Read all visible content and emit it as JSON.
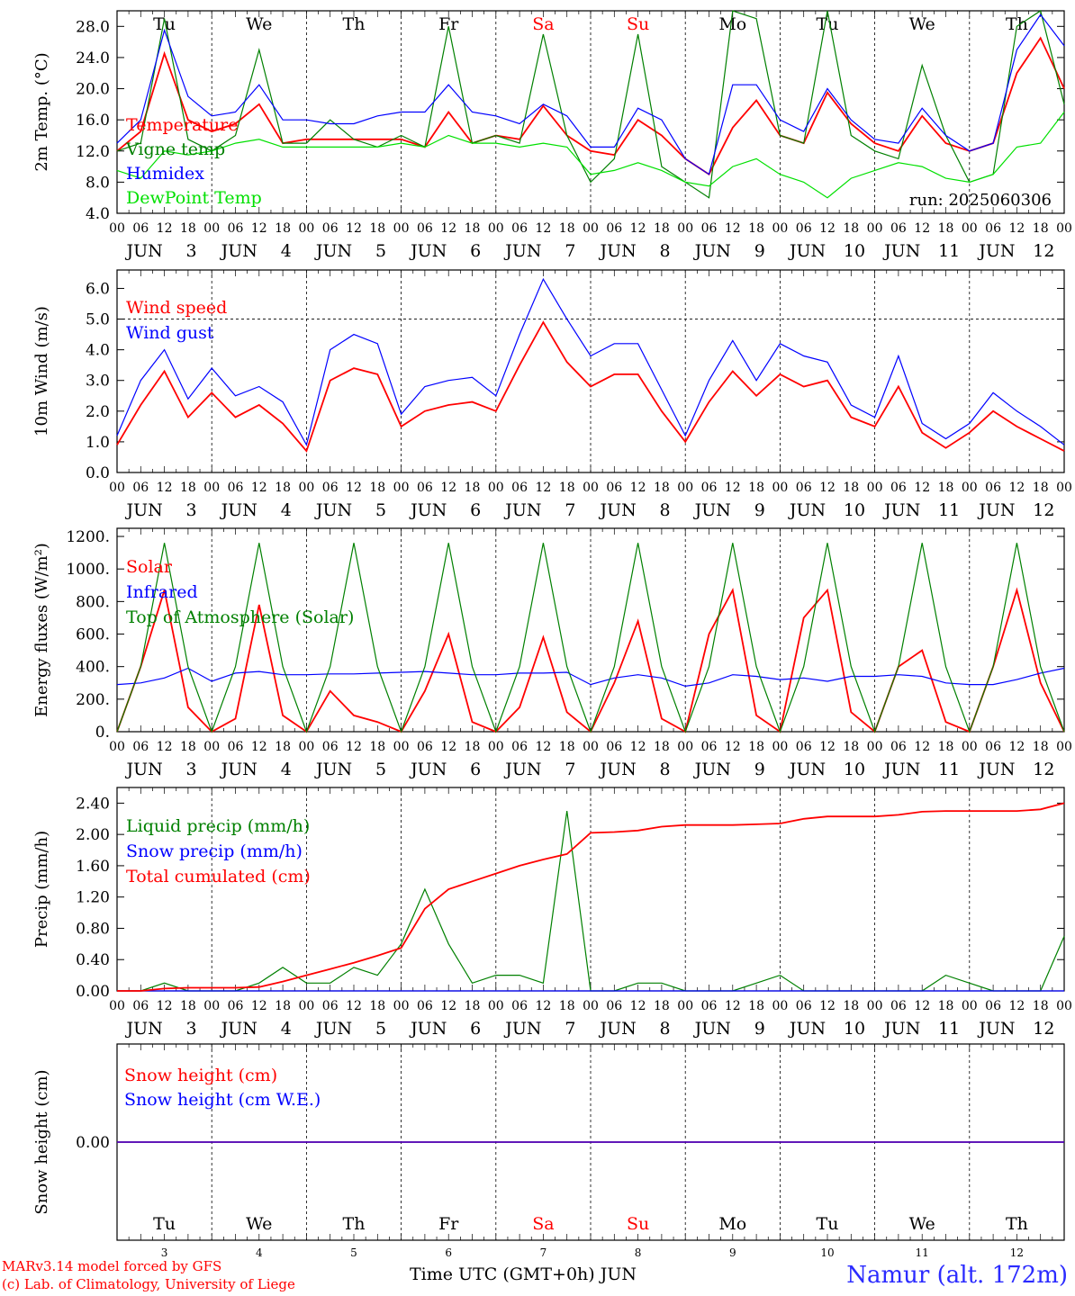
{
  "run_label": "run: 2025060306",
  "month": "JUN",
  "days": [
    3,
    4,
    5,
    6,
    7,
    8,
    9,
    10,
    11,
    12
  ],
  "weekdays": [
    {
      "label": "Tu",
      "color": "#000000"
    },
    {
      "label": "We",
      "color": "#000000"
    },
    {
      "label": "Th",
      "color": "#000000"
    },
    {
      "label": "Fr",
      "color": "#000000"
    },
    {
      "label": "Sa",
      "color": "#ff0000"
    },
    {
      "label": "Su",
      "color": "#ff0000"
    },
    {
      "label": "Mo",
      "color": "#000000"
    },
    {
      "label": "Tu",
      "color": "#000000"
    },
    {
      "label": "We",
      "color": "#000000"
    },
    {
      "label": "Th",
      "color": "#000000"
    }
  ],
  "hour_ticks": [
    "00",
    "06",
    "12",
    "18"
  ],
  "footer": {
    "model": "MARv3.14 model forced by GFS",
    "credit": "(c) Lab. of Climatology, University of Liege",
    "time_label": "Time UTC (GMT+0h) JUN",
    "station": "Namur (alt. 172m)"
  },
  "colors": {
    "red": "#ff0000",
    "blue": "#0000ff",
    "green": "#008000",
    "lightgreen": "#00e000"
  },
  "chart_data": [
    {
      "type": "line",
      "ylabel": "2m Temp. (°C)",
      "ylim": [
        4,
        30
      ],
      "yticks": [
        "4.0",
        "8.0",
        "12.0",
        "16.0",
        "20.0",
        "24.0",
        "28.0"
      ],
      "ytick_values": [
        4,
        8,
        12,
        16,
        20,
        24,
        28
      ],
      "x_hours": [
        0,
        6,
        12,
        18,
        24,
        30,
        36,
        42,
        48,
        54,
        60,
        66,
        72,
        78,
        84,
        90,
        96,
        102,
        108,
        114,
        120,
        126,
        132,
        138,
        144,
        150,
        156,
        162,
        168,
        174,
        180,
        186,
        192,
        198,
        204,
        210,
        216,
        222,
        228,
        234,
        240
      ],
      "series": [
        {
          "name": "Temperature",
          "color": "#ff0000",
          "values": [
            12,
            14.5,
            24.5,
            16,
            14.5,
            15.5,
            18,
            13,
            13.5,
            13.5,
            13.5,
            13.5,
            13.5,
            12.5,
            17,
            13,
            14,
            13.5,
            17.8,
            14,
            12,
            11.5,
            16,
            14,
            11,
            9,
            15,
            18.5,
            14,
            13,
            19.5,
            15.5,
            13,
            12,
            16.5,
            13,
            12,
            13,
            22,
            26.5,
            20
          ]
        },
        {
          "name": "Vigne temp",
          "color": "#008000",
          "values": [
            12,
            13,
            29,
            13.5,
            12,
            14,
            25,
            13,
            13,
            16,
            13.5,
            12.5,
            14,
            12.5,
            28,
            13,
            14,
            13,
            27,
            14,
            8,
            11,
            27,
            10,
            8,
            6,
            30,
            29,
            14,
            13,
            30,
            14,
            12,
            11,
            23,
            14,
            8,
            9,
            28,
            30,
            18
          ]
        },
        {
          "name": "Humidex",
          "color": "#0000ff",
          "values": [
            13,
            16,
            27.5,
            19,
            16.5,
            17,
            20.5,
            16,
            16,
            15.5,
            15.5,
            16.5,
            17,
            17,
            20.5,
            17,
            16.5,
            15.5,
            18,
            16.5,
            12.5,
            12.5,
            17.5,
            16,
            11,
            9,
            20.5,
            20.5,
            16,
            14.5,
            20,
            16,
            13.5,
            13,
            17.5,
            14,
            12,
            13,
            25,
            29.5,
            25.5
          ]
        },
        {
          "name": "DewPoint Temp",
          "color": "#00e000",
          "values": [
            9.5,
            8.5,
            12,
            11.5,
            12,
            13,
            13.5,
            12.5,
            12.5,
            12.5,
            12.5,
            12.5,
            13,
            12.5,
            14,
            13,
            13,
            12.5,
            13,
            12.5,
            9,
            9.5,
            10.5,
            9.5,
            8,
            7.5,
            10,
            11,
            9,
            8,
            6,
            8.5,
            9.5,
            10.5,
            10,
            8.5,
            8,
            9,
            12.5,
            13,
            17
          ]
        }
      ]
    },
    {
      "type": "line",
      "ylabel": "10m Wind (m/s)",
      "ylim": [
        0,
        6.6
      ],
      "yticks": [
        "0.0",
        "1.0",
        "2.0",
        "3.0",
        "4.0",
        "5.0",
        "6.0"
      ],
      "ytick_values": [
        0,
        1,
        2,
        3,
        4,
        5,
        6
      ],
      "x_hours": [
        0,
        6,
        12,
        18,
        24,
        30,
        36,
        42,
        48,
        54,
        60,
        66,
        72,
        78,
        84,
        90,
        96,
        102,
        108,
        114,
        120,
        126,
        132,
        138,
        144,
        150,
        156,
        162,
        168,
        174,
        180,
        186,
        192,
        198,
        204,
        210,
        216,
        222,
        228,
        234,
        240
      ],
      "series": [
        {
          "name": "Wind speed",
          "color": "#ff0000",
          "values": [
            0.9,
            2.2,
            3.3,
            1.8,
            2.6,
            1.8,
            2.2,
            1.6,
            0.7,
            3,
            3.4,
            3.2,
            1.5,
            2,
            2.2,
            2.3,
            2,
            3.5,
            4.9,
            3.6,
            2.8,
            3.2,
            3.2,
            2,
            1,
            2.3,
            3.3,
            2.5,
            3.2,
            2.8,
            3,
            1.8,
            1.5,
            2.8,
            1.3,
            0.8,
            1.3,
            2,
            1.5,
            1.1,
            0.7
          ]
        },
        {
          "name": "Wind gust",
          "color": "#0000ff",
          "values": [
            1.2,
            3,
            4,
            2.4,
            3.4,
            2.5,
            2.8,
            2.3,
            0.9,
            4,
            4.5,
            4.2,
            1.9,
            2.8,
            3,
            3.1,
            2.5,
            4.5,
            6.3,
            5,
            3.8,
            4.2,
            4.2,
            2.7,
            1.2,
            3,
            4.3,
            3,
            4.2,
            3.8,
            3.6,
            2.2,
            1.8,
            3.8,
            1.6,
            1.1,
            1.6,
            2.6,
            2,
            1.5,
            0.9
          ]
        }
      ]
    },
    {
      "type": "line",
      "ylabel": "Energy fluxes (W/m²)",
      "ylim": [
        0,
        1250
      ],
      "yticks": [
        "0.",
        "200.",
        "400.",
        "600.",
        "800.",
        "1000.",
        "1200."
      ],
      "ytick_values": [
        0,
        200,
        400,
        600,
        800,
        1000,
        1200
      ],
      "x_hours": [
        0,
        6,
        12,
        18,
        24,
        30,
        36,
        42,
        48,
        54,
        60,
        66,
        72,
        78,
        84,
        90,
        96,
        102,
        108,
        114,
        120,
        126,
        132,
        138,
        144,
        150,
        156,
        162,
        168,
        174,
        180,
        186,
        192,
        198,
        204,
        210,
        216,
        222,
        228,
        234,
        240
      ],
      "series": [
        {
          "name": "Solar",
          "color": "#ff0000",
          "values": [
            0,
            400,
            870,
            150,
            0,
            80,
            780,
            100,
            0,
            250,
            100,
            60,
            0,
            250,
            600,
            60,
            0,
            150,
            580,
            120,
            0,
            300,
            680,
            80,
            0,
            600,
            870,
            100,
            0,
            700,
            870,
            120,
            0,
            400,
            500,
            60,
            0,
            400,
            870,
            300,
            0
          ]
        },
        {
          "name": "Infrared",
          "color": "#0000ff",
          "values": [
            290,
            300,
            330,
            390,
            310,
            360,
            370,
            350,
            350,
            355,
            355,
            360,
            365,
            370,
            360,
            350,
            350,
            360,
            360,
            365,
            290,
            330,
            350,
            330,
            280,
            300,
            350,
            340,
            320,
            330,
            310,
            340,
            340,
            350,
            340,
            300,
            290,
            290,
            320,
            360,
            390
          ]
        },
        {
          "name": "Top of Atmosphere (Solar)",
          "color": "#008000",
          "values": [
            0,
            400,
            1160,
            400,
            0,
            400,
            1160,
            400,
            0,
            400,
            1160,
            400,
            0,
            400,
            1160,
            400,
            0,
            400,
            1160,
            400,
            0,
            400,
            1160,
            400,
            0,
            400,
            1160,
            400,
            0,
            400,
            1160,
            400,
            0,
            400,
            1160,
            400,
            0,
            400,
            1160,
            400,
            0
          ]
        }
      ]
    },
    {
      "type": "line",
      "ylabel": "Precip (mm/h)",
      "ylim": [
        0,
        2.6
      ],
      "yticks": [
        "0.00",
        "0.40",
        "0.80",
        "1.20",
        "1.60",
        "2.00",
        "2.40"
      ],
      "ytick_values": [
        0,
        0.4,
        0.8,
        1.2,
        1.6,
        2,
        2.4
      ],
      "x_hours": [
        0,
        6,
        12,
        18,
        24,
        30,
        36,
        42,
        48,
        54,
        60,
        66,
        72,
        78,
        84,
        90,
        96,
        102,
        108,
        114,
        120,
        126,
        132,
        138,
        144,
        150,
        156,
        162,
        168,
        174,
        180,
        186,
        192,
        198,
        204,
        210,
        216,
        222,
        228,
        234,
        240
      ],
      "series": [
        {
          "name": "Liquid precip (mm/h)",
          "color": "#008000",
          "values": [
            0,
            0,
            0.1,
            0,
            0,
            0,
            0.1,
            0.3,
            0.1,
            0.1,
            0.3,
            0.2,
            0.6,
            1.3,
            0.6,
            0.1,
            0.2,
            0.2,
            0.1,
            2.3,
            0,
            0,
            0.1,
            0.1,
            0,
            0,
            0,
            0.1,
            0.2,
            0,
            0,
            0,
            0,
            0,
            0,
            0.2,
            0.1,
            0,
            0,
            0,
            0.7
          ]
        },
        {
          "name": "Snow precip (mm/h)",
          "color": "#0000ff",
          "values": [
            0,
            0,
            0,
            0,
            0,
            0,
            0,
            0,
            0,
            0,
            0,
            0,
            0,
            0,
            0,
            0,
            0,
            0,
            0,
            0,
            0,
            0,
            0,
            0,
            0,
            0,
            0,
            0,
            0,
            0,
            0,
            0,
            0,
            0,
            0,
            0,
            0,
            0,
            0,
            0,
            0
          ]
        },
        {
          "name": "Total cumulated (cm)",
          "color": "#ff0000",
          "values": [
            0,
            0,
            0.03,
            0.04,
            0.04,
            0.04,
            0.05,
            0.12,
            0.2,
            0.28,
            0.36,
            0.45,
            0.55,
            1.05,
            1.3,
            1.4,
            1.5,
            1.6,
            1.68,
            1.75,
            2.02,
            2.03,
            2.05,
            2.1,
            2.12,
            2.12,
            2.12,
            2.13,
            2.14,
            2.2,
            2.23,
            2.23,
            2.23,
            2.25,
            2.29,
            2.3,
            2.3,
            2.3,
            2.3,
            2.32,
            2.4
          ]
        }
      ]
    },
    {
      "type": "line",
      "ylabel": "Snow height (cm)",
      "ylim": [
        -0.5,
        0.5
      ],
      "yticks": [
        "0.00"
      ],
      "ytick_values": [
        0
      ],
      "x_hours": [
        0,
        240
      ],
      "series": [
        {
          "name": "Snow height (cm)",
          "color": "#ff0000",
          "values": [
            0,
            0
          ]
        },
        {
          "name": "Snow height (cm W.E.)",
          "color": "#0000ff",
          "values": [
            0,
            0
          ]
        }
      ]
    }
  ]
}
